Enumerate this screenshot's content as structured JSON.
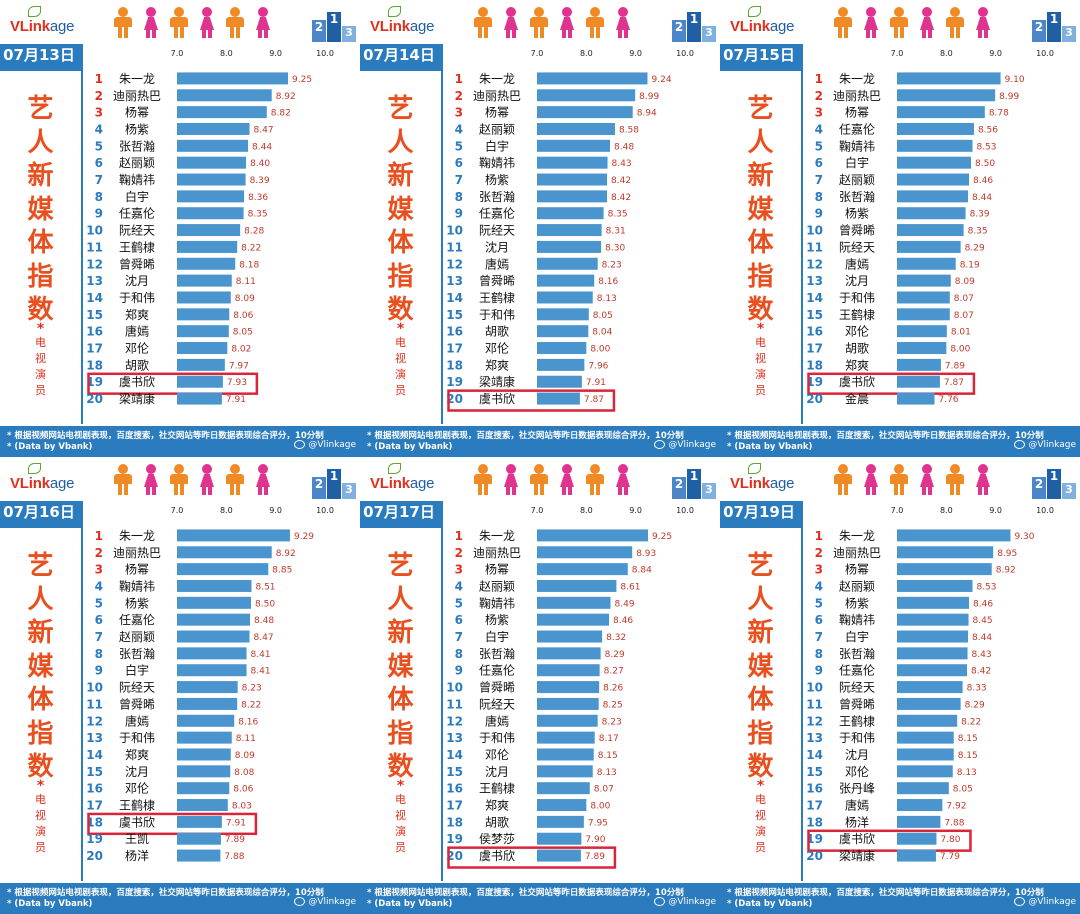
{
  "brand": {
    "logo_part1": "VLink",
    "logo_part2": "age"
  },
  "title_chars": [
    "艺",
    "人",
    "新",
    "媒",
    "体",
    "指",
    "数"
  ],
  "subtitle_star": "*",
  "subtitle_chars": [
    "电",
    "视",
    "演",
    "员"
  ],
  "footer": {
    "note": "* 根据视频网站电视剧表现，百度搜索，社交网站等昨日数据表现综合评分，10分制",
    "data_by": "* (Data by Vbank)",
    "weibo": "@Vlinkage"
  },
  "colors": {
    "accent": "#2b7bbf",
    "bar": "#4b95cf",
    "title": "#e8501f",
    "rank": "#e0301e",
    "value": "#c0392b",
    "highlight_box": "#d9253a",
    "male_person": "#f08a24",
    "female_person": "#e0338e"
  },
  "highlight_name": "虞书欣",
  "chart_data": [
    {
      "type": "bar",
      "date": "07月13日",
      "xlim": [
        7.0,
        10.0
      ],
      "ticks": [
        "7.0",
        "8.0",
        "9.0",
        "10.0"
      ],
      "categories": [
        "朱一龙",
        "迪丽热巴",
        "杨幂",
        "杨紫",
        "张哲瀚",
        "赵丽颖",
        "鞠婧祎",
        "白宇",
        "任嘉伦",
        "阮经天",
        "王鹤棣",
        "曾舜晞",
        "沈月",
        "于和伟",
        "郑爽",
        "唐嫣",
        "邓伦",
        "胡歌",
        "虞书欣",
        "梁靖康"
      ],
      "values": [
        "9.25",
        "8.92",
        "8.82",
        "8.47",
        "8.44",
        "8.40",
        "8.39",
        "8.36",
        "8.35",
        "8.28",
        "8.22",
        "8.18",
        "8.11",
        "8.09",
        "8.06",
        "8.05",
        "8.02",
        "7.97",
        "7.93",
        "7.91"
      ]
    },
    {
      "type": "bar",
      "date": "07月14日",
      "xlim": [
        7.0,
        10.0
      ],
      "ticks": [
        "7.0",
        "8.0",
        "9.0",
        "10.0"
      ],
      "categories": [
        "朱一龙",
        "迪丽热巴",
        "杨幂",
        "赵丽颖",
        "白宇",
        "鞠婧祎",
        "杨紫",
        "张哲瀚",
        "任嘉伦",
        "阮经天",
        "沈月",
        "唐嫣",
        "曾舜晞",
        "王鹤棣",
        "于和伟",
        "胡歌",
        "邓伦",
        "郑爽",
        "梁靖康",
        "虞书欣"
      ],
      "values": [
        "9.24",
        "8.99",
        "8.94",
        "8.58",
        "8.48",
        "8.43",
        "8.42",
        "8.42",
        "8.35",
        "8.31",
        "8.30",
        "8.23",
        "8.16",
        "8.13",
        "8.05",
        "8.04",
        "8.00",
        "7.96",
        "7.91",
        "7.87"
      ]
    },
    {
      "type": "bar",
      "date": "07月15日",
      "xlim": [
        7.0,
        10.0
      ],
      "ticks": [
        "7.0",
        "8.0",
        "9.0",
        "10.0"
      ],
      "categories": [
        "朱一龙",
        "迪丽热巴",
        "杨幂",
        "任嘉伦",
        "鞠婧祎",
        "白宇",
        "赵丽颖",
        "张哲瀚",
        "杨紫",
        "曾舜晞",
        "阮经天",
        "唐嫣",
        "沈月",
        "于和伟",
        "王鹤棣",
        "邓伦",
        "胡歌",
        "郑爽",
        "虞书欣",
        "金晨"
      ],
      "values": [
        "9.10",
        "8.99",
        "8.78",
        "8.56",
        "8.53",
        "8.50",
        "8.46",
        "8.44",
        "8.39",
        "8.35",
        "8.29",
        "8.19",
        "8.09",
        "8.07",
        "8.07",
        "8.01",
        "8.00",
        "7.89",
        "7.87",
        "7.76"
      ]
    },
    {
      "type": "bar",
      "date": "07月16日",
      "xlim": [
        7.0,
        10.0
      ],
      "ticks": [
        "7.0",
        "8.0",
        "9.0",
        "10.0"
      ],
      "categories": [
        "朱一龙",
        "迪丽热巴",
        "杨幂",
        "鞠婧祎",
        "杨紫",
        "任嘉伦",
        "赵丽颖",
        "张哲瀚",
        "白宇",
        "阮经天",
        "曾舜晞",
        "唐嫣",
        "于和伟",
        "郑爽",
        "沈月",
        "邓伦",
        "王鹤棣",
        "虞书欣",
        "王凯",
        "杨洋"
      ],
      "values": [
        "9.29",
        "8.92",
        "8.85",
        "8.51",
        "8.50",
        "8.48",
        "8.47",
        "8.41",
        "8.41",
        "8.23",
        "8.22",
        "8.16",
        "8.11",
        "8.09",
        "8.08",
        "8.06",
        "8.03",
        "7.91",
        "7.89",
        "7.88"
      ]
    },
    {
      "type": "bar",
      "date": "07月17日",
      "xlim": [
        7.0,
        10.0
      ],
      "ticks": [
        "7.0",
        "8.0",
        "9.0",
        "10.0"
      ],
      "categories": [
        "朱一龙",
        "迪丽热巴",
        "杨幂",
        "赵丽颖",
        "鞠婧祎",
        "杨紫",
        "白宇",
        "张哲瀚",
        "任嘉伦",
        "曾舜晞",
        "阮经天",
        "唐嫣",
        "于和伟",
        "邓伦",
        "沈月",
        "王鹤棣",
        "郑爽",
        "胡歌",
        "侯梦莎",
        "虞书欣"
      ],
      "values": [
        "9.25",
        "8.93",
        "8.84",
        "8.61",
        "8.49",
        "8.46",
        "8.32",
        "8.29",
        "8.27",
        "8.26",
        "8.25",
        "8.23",
        "8.17",
        "8.15",
        "8.13",
        "8.07",
        "8.00",
        "7.95",
        "7.90",
        "7.89"
      ]
    },
    {
      "type": "bar",
      "date": "07月19日",
      "xlim": [
        7.0,
        10.0
      ],
      "ticks": [
        "7.0",
        "8.0",
        "9.0",
        "10.0"
      ],
      "categories": [
        "朱一龙",
        "迪丽热巴",
        "杨幂",
        "赵丽颖",
        "杨紫",
        "鞠婧祎",
        "白宇",
        "张哲瀚",
        "任嘉伦",
        "阮经天",
        "曾舜晞",
        "王鹤棣",
        "于和伟",
        "沈月",
        "邓伦",
        "张丹峰",
        "唐嫣",
        "杨洋",
        "虞书欣",
        "梁靖康"
      ],
      "values": [
        "9.30",
        "8.95",
        "8.92",
        "8.53",
        "8.46",
        "8.45",
        "8.44",
        "8.43",
        "8.42",
        "8.33",
        "8.29",
        "8.22",
        "8.15",
        "8.15",
        "8.13",
        "8.05",
        "7.92",
        "7.88",
        "7.80",
        "7.79"
      ]
    }
  ]
}
